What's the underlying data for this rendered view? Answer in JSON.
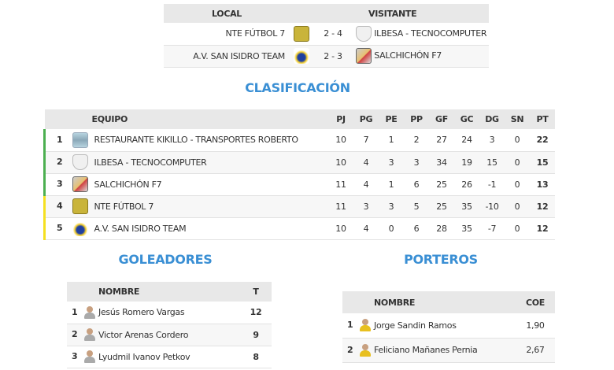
{
  "results": {
    "headers": {
      "local": "LOCAL",
      "visitor": "VISITANTE"
    },
    "matches": [
      {
        "local": "NTE FÚTBOL 7",
        "local_crest": "c-nte",
        "score": "2 - 4",
        "visitor": "ILBESA - TECNOCOMPUTER",
        "visitor_crest": "c-ilb"
      },
      {
        "local": "A.V. SAN ISIDRO TEAM",
        "local_crest": "c-san",
        "score": "2 - 3",
        "visitor": "SALCHICHÓN F7",
        "visitor_crest": "c-sal"
      }
    ]
  },
  "standings": {
    "title": "CLASIFICACIÓN",
    "headers": [
      "EQUIPO",
      "PJ",
      "PG",
      "PE",
      "PP",
      "GF",
      "GC",
      "DG",
      "SN",
      "PT"
    ],
    "rows": [
      {
        "pos": "1",
        "team": "RESTAURANTE KIKILLO - TRANSPORTES ROBERTO",
        "crest": "c-kik",
        "zone": "green",
        "stats": [
          "10",
          "7",
          "1",
          "2",
          "27",
          "24",
          "3",
          "0"
        ],
        "pt": "22"
      },
      {
        "pos": "2",
        "team": "ILBESA - TECNOCOMPUTER",
        "crest": "c-ilb",
        "zone": "green",
        "stats": [
          "10",
          "4",
          "3",
          "3",
          "34",
          "19",
          "15",
          "0"
        ],
        "pt": "15"
      },
      {
        "pos": "3",
        "team": "SALCHICHÓN F7",
        "crest": "c-sal",
        "zone": "green",
        "stats": [
          "11",
          "4",
          "1",
          "6",
          "25",
          "26",
          "-1",
          "0"
        ],
        "pt": "13"
      },
      {
        "pos": "4",
        "team": "NTE FÚTBOL 7",
        "crest": "c-nte",
        "zone": "yellow",
        "stats": [
          "11",
          "3",
          "3",
          "5",
          "25",
          "35",
          "-10",
          "0"
        ],
        "pt": "12"
      },
      {
        "pos": "5",
        "team": "A.V. SAN ISIDRO TEAM",
        "crest": "c-san",
        "zone": "yellow",
        "stats": [
          "10",
          "4",
          "0",
          "6",
          "28",
          "35",
          "-7",
          "0"
        ],
        "pt": "12"
      }
    ]
  },
  "scorers": {
    "title": "GOLEADORES",
    "headers": [
      "NOMBRE",
      "T"
    ],
    "rows": [
      {
        "pos": "1",
        "name": "Jesús Romero Vargas",
        "value": "12"
      },
      {
        "pos": "2",
        "name": "Victor Arenas Cordero",
        "value": "9"
      },
      {
        "pos": "3",
        "name": "Lyudmil Ivanov Petkov",
        "value": "8"
      }
    ]
  },
  "keepers": {
    "title": "PORTEROS",
    "headers": [
      "NOMBRE",
      "COE"
    ],
    "rows": [
      {
        "pos": "1",
        "name": "Jorge Sandin Ramos",
        "value": "1,90"
      },
      {
        "pos": "2",
        "name": "Feliciano Mañanes Pernia",
        "value": "2,67"
      }
    ]
  },
  "colors": {
    "accent": "#3a8fd4",
    "promotion": "#4caf50",
    "playoff": "#f5e020"
  }
}
